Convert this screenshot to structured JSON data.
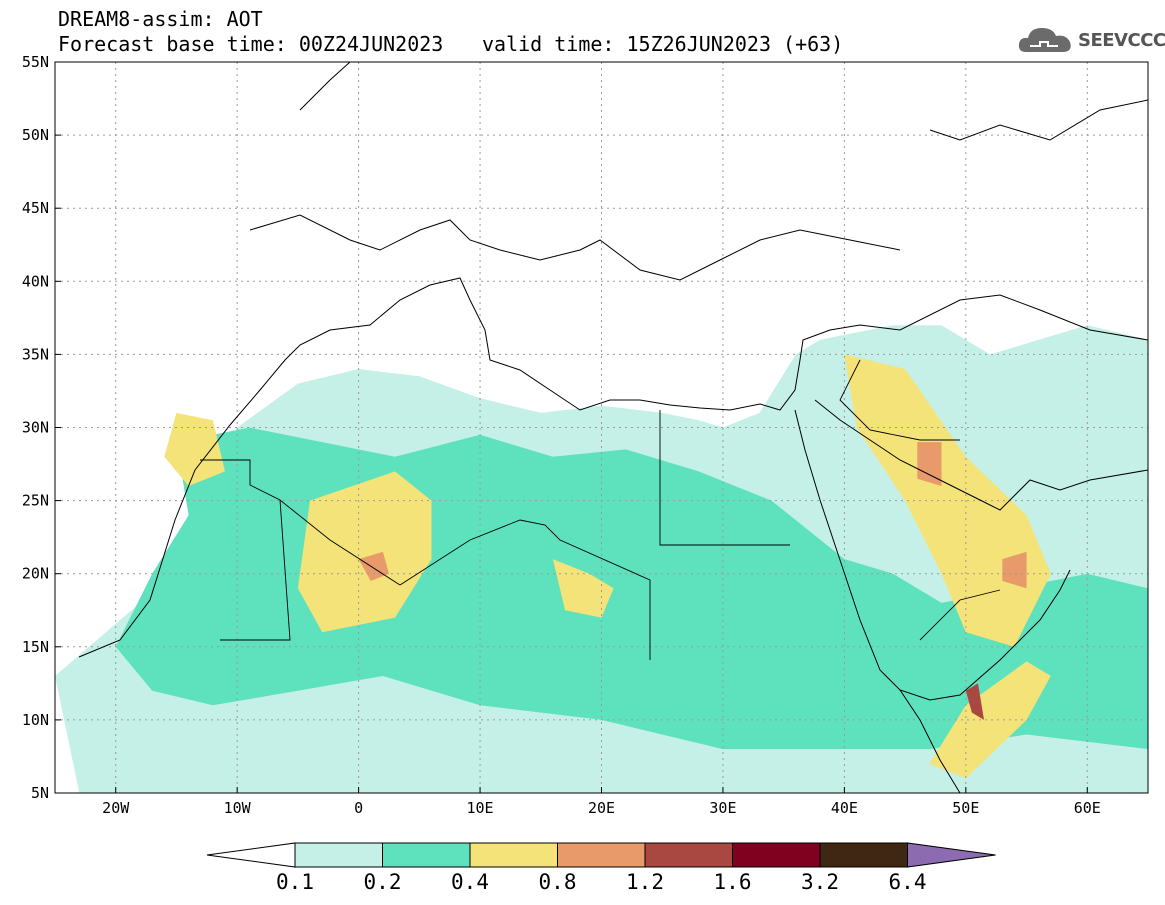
{
  "header": {
    "title": "DREAM8-assim: AOT",
    "base_time": "Forecast base time: 00Z24JUN2023",
    "valid_time": "valid time: 15Z26JUN2023 (+63)"
  },
  "logo": {
    "text": "SEEVCCC",
    "icon": "cloud-icon"
  },
  "map": {
    "lon_range": [
      -25,
      65
    ],
    "lat_range": [
      5,
      55
    ],
    "lat_ticks": [
      {
        "v": 55,
        "label": "55N"
      },
      {
        "v": 50,
        "label": "50N"
      },
      {
        "v": 45,
        "label": "45N"
      },
      {
        "v": 40,
        "label": "40N"
      },
      {
        "v": 35,
        "label": "35N"
      },
      {
        "v": 30,
        "label": "30N"
      },
      {
        "v": 25,
        "label": "25N"
      },
      {
        "v": 20,
        "label": "20N"
      },
      {
        "v": 15,
        "label": "15N"
      },
      {
        "v": 10,
        "label": "10N"
      },
      {
        "v": 5,
        "label": "5N"
      }
    ],
    "lon_ticks": [
      {
        "v": -20,
        "label": "20W"
      },
      {
        "v": -10,
        "label": "10W"
      },
      {
        "v": 0,
        "label": "0"
      },
      {
        "v": 10,
        "label": "10E"
      },
      {
        "v": 20,
        "label": "20E"
      },
      {
        "v": 30,
        "label": "30E"
      },
      {
        "v": 40,
        "label": "40E"
      },
      {
        "v": 50,
        "label": "50E"
      },
      {
        "v": 60,
        "label": "60E"
      }
    ],
    "dust_regions": [
      {
        "level": 1,
        "polygon": [
          [
            -25,
            13
          ],
          [
            -18,
            18
          ],
          [
            -14,
            24
          ],
          [
            -10,
            30
          ],
          [
            -5,
            33
          ],
          [
            0,
            34
          ],
          [
            5,
            33.5
          ],
          [
            10,
            32
          ],
          [
            15,
            31
          ],
          [
            20,
            31.5
          ],
          [
            25,
            31
          ],
          [
            28,
            30.5
          ],
          [
            30,
            30
          ],
          [
            33,
            31
          ],
          [
            36,
            35
          ],
          [
            38,
            36
          ],
          [
            44,
            37
          ],
          [
            48,
            37
          ],
          [
            52,
            35
          ],
          [
            56,
            36
          ],
          [
            60,
            37
          ],
          [
            65,
            36
          ],
          [
            65,
            5
          ],
          [
            -23,
            5
          ]
        ]
      },
      {
        "level": 2,
        "polygon": [
          [
            -15,
            29
          ],
          [
            -9,
            30
          ],
          [
            -3,
            29
          ],
          [
            3,
            28
          ],
          [
            10,
            29.5
          ],
          [
            16,
            28
          ],
          [
            22,
            28.5
          ],
          [
            28,
            27
          ],
          [
            34,
            25
          ],
          [
            40,
            21
          ],
          [
            44,
            20
          ],
          [
            48,
            18
          ],
          [
            54,
            19
          ],
          [
            60,
            20
          ],
          [
            65,
            19
          ],
          [
            65,
            8
          ],
          [
            55,
            9
          ],
          [
            47,
            8
          ],
          [
            40,
            8
          ],
          [
            30,
            8
          ],
          [
            20,
            10
          ],
          [
            10,
            11
          ],
          [
            2,
            13
          ],
          [
            -5,
            12
          ],
          [
            -12,
            11
          ],
          [
            -17,
            12
          ],
          [
            -20,
            15
          ],
          [
            -17,
            20
          ],
          [
            -14,
            24
          ]
        ]
      },
      {
        "level": 3,
        "polygon": [
          [
            -4,
            25
          ],
          [
            3,
            27
          ],
          [
            6,
            25
          ],
          [
            6,
            21
          ],
          [
            3,
            17
          ],
          [
            -3,
            16
          ],
          [
            -5,
            19
          ]
        ]
      },
      {
        "level": 3,
        "polygon": [
          [
            -15,
            31
          ],
          [
            -12,
            30.5
          ],
          [
            -11,
            27
          ],
          [
            -14,
            26
          ],
          [
            -16,
            28
          ]
        ]
      },
      {
        "level": 3,
        "polygon": [
          [
            40,
            35
          ],
          [
            45,
            34
          ],
          [
            50,
            28
          ],
          [
            55,
            24
          ],
          [
            57,
            20
          ],
          [
            54,
            15
          ],
          [
            50,
            16
          ],
          [
            48,
            20
          ],
          [
            45,
            25
          ],
          [
            41,
            30
          ]
        ]
      },
      {
        "level": 3,
        "polygon": [
          [
            47,
            7
          ],
          [
            50,
            11
          ],
          [
            55,
            14
          ],
          [
            57,
            13
          ],
          [
            55,
            10
          ],
          [
            50,
            6
          ]
        ]
      },
      {
        "level": 3,
        "polygon": [
          [
            16,
            21
          ],
          [
            19,
            20
          ],
          [
            21,
            19
          ],
          [
            20,
            17
          ],
          [
            17,
            17.5
          ]
        ]
      },
      {
        "level": 4,
        "polygon": [
          [
            0,
            21
          ],
          [
            2,
            21.5
          ],
          [
            2.5,
            20
          ],
          [
            1,
            19.5
          ]
        ]
      },
      {
        "level": 4,
        "polygon": [
          [
            46,
            29
          ],
          [
            48,
            29
          ],
          [
            48,
            26
          ],
          [
            46,
            26.5
          ]
        ]
      },
      {
        "level": 4,
        "polygon": [
          [
            53,
            21
          ],
          [
            55,
            21.5
          ],
          [
            55,
            19
          ],
          [
            53,
            19.5
          ]
        ]
      },
      {
        "level": 5,
        "polygon": [
          [
            50,
            12
          ],
          [
            51,
            12.5
          ],
          [
            51.5,
            10
          ],
          [
            50.5,
            10.5
          ]
        ]
      }
    ]
  },
  "colorbar": {
    "labels": [
      "0.1",
      "0.2",
      "0.4",
      "0.8",
      "1.2",
      "1.6",
      "3.2",
      "6.4"
    ],
    "colors": [
      "#ffffff",
      "#c5f0e8",
      "#5ee2bd",
      "#f4e378",
      "#e89a6b",
      "#a84840",
      "#800020",
      "#3f2714",
      "#8c6bb0"
    ]
  }
}
